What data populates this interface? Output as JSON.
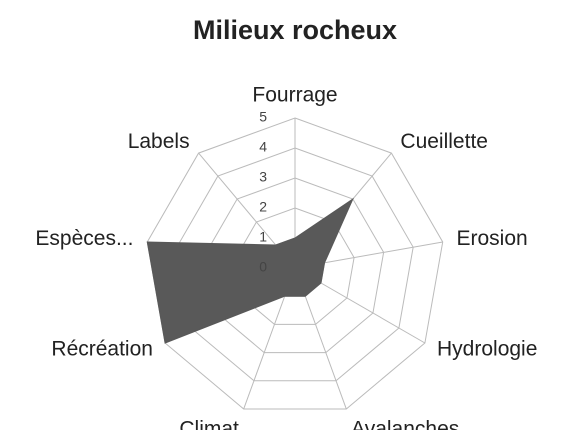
{
  "chart_data": {
    "type": "radar",
    "title": "Milieux rocheux",
    "categories": [
      "Fourrage",
      "Cueillette",
      "Erosion",
      "Hydrologie",
      "Avalanches",
      "Climat",
      "Récréation",
      "Espèces...",
      "Labels"
    ],
    "values": [
      1,
      3,
      1,
      1,
      1,
      1,
      5,
      5,
      1
    ],
    "color": "#595959",
    "ylim": [
      0,
      5
    ],
    "yticks": [
      0,
      1,
      2,
      3,
      4,
      5
    ],
    "grid": true
  }
}
